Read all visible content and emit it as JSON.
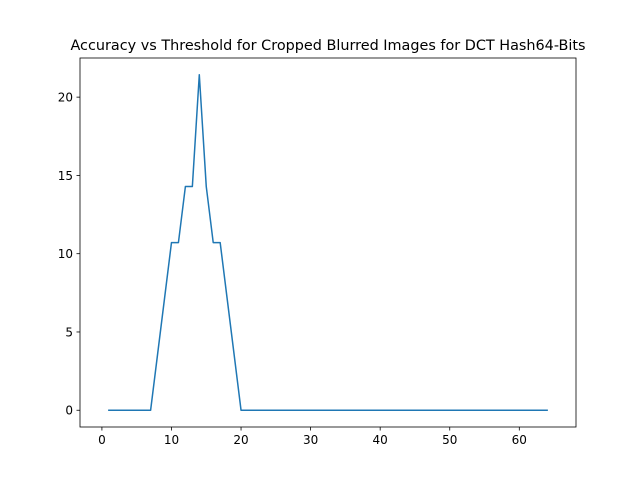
{
  "chart_data": {
    "type": "line",
    "title": "Accuracy vs Threshold for Cropped Blurred Images for DCT Hash64-Bits",
    "xlabel": "",
    "ylabel": "",
    "xlim": [
      -3.15,
      68.15
    ],
    "ylim": [
      -1.07,
      22.5
    ],
    "xticks": [
      0,
      10,
      20,
      30,
      40,
      50,
      60
    ],
    "yticks": [
      0,
      5,
      10,
      15,
      20
    ],
    "grid": false,
    "legend": "none",
    "series": [
      {
        "color": "#1f77b4",
        "x": [
          1,
          2,
          3,
          4,
          5,
          6,
          7,
          8,
          9,
          10,
          11,
          12,
          13,
          14,
          15,
          16,
          17,
          18,
          19,
          20,
          21,
          22,
          23,
          24,
          25,
          26,
          27,
          28,
          29,
          30,
          31,
          32,
          33,
          34,
          35,
          36,
          37,
          38,
          39,
          40,
          41,
          42,
          43,
          44,
          45,
          46,
          47,
          48,
          49,
          50,
          51,
          52,
          53,
          54,
          55,
          56,
          57,
          58,
          59,
          60,
          61,
          62,
          63,
          64
        ],
        "y": [
          0,
          0,
          0,
          0,
          0,
          0,
          0,
          3.57,
          7.14,
          10.71,
          10.71,
          14.29,
          14.29,
          21.43,
          14.29,
          10.71,
          10.71,
          7.14,
          3.57,
          0,
          0,
          0,
          0,
          0,
          0,
          0,
          0,
          0,
          0,
          0,
          0,
          0,
          0,
          0,
          0,
          0,
          0,
          0,
          0,
          0,
          0,
          0,
          0,
          0,
          0,
          0,
          0,
          0,
          0,
          0,
          0,
          0,
          0,
          0,
          0,
          0,
          0,
          0,
          0,
          0,
          0,
          0,
          0,
          0
        ]
      }
    ]
  }
}
